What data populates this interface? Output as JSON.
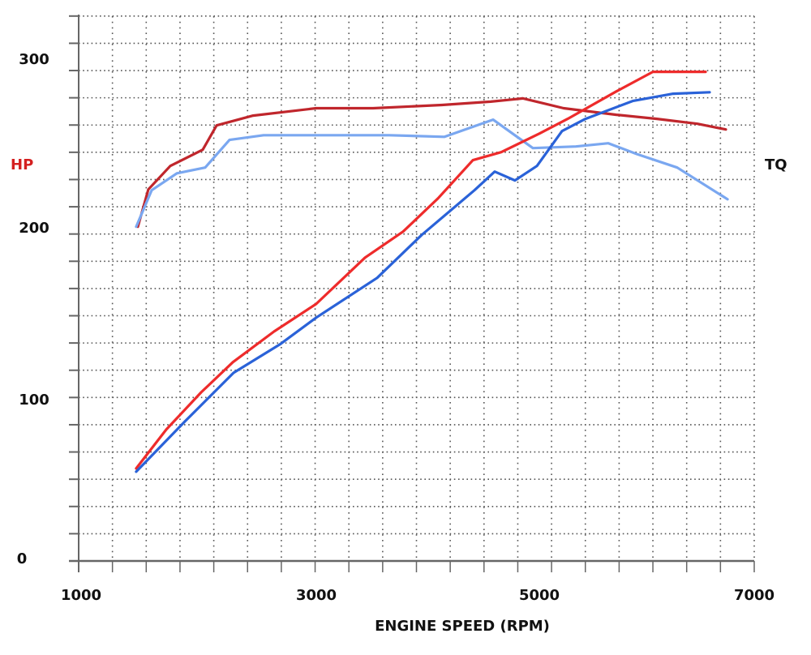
{
  "chart_data": {
    "type": "line",
    "title": "",
    "xlabel": "ENGINE SPEED (RPM)",
    "ylabel_left": "HP",
    "ylabel_right": "TQ",
    "xlim": [
      1000,
      7000
    ],
    "ylim": [
      0,
      333.3
    ],
    "x_ticks": [
      "1000",
      "3000",
      "5000",
      "7000"
    ],
    "y_ticks": [
      "0",
      "100",
      "200",
      "300"
    ],
    "x_grid_step": 300,
    "y_grid_step": 16.67,
    "grid": true,
    "grid_style": "dotted",
    "colors": {
      "hp_label": "#d42020",
      "axis": "#666666"
    },
    "series": [
      {
        "color": "#c0262c",
        "points": [
          [
            1526,
            204.5
          ],
          [
            1619,
            227.3
          ],
          [
            1814,
            241.7
          ],
          [
            2102,
            251.6
          ],
          [
            2225,
            266.5
          ],
          [
            2549,
            272.5
          ],
          [
            3110,
            277
          ],
          [
            3615,
            277
          ],
          [
            4227,
            279
          ],
          [
            4659,
            281
          ],
          [
            4947,
            283
          ],
          [
            5307,
            277
          ],
          [
            5776,
            273
          ],
          [
            6136,
            270.5
          ],
          [
            6496,
            267.5
          ],
          [
            6748,
            264
          ]
        ]
      },
      {
        "color": "#7aa7f0",
        "points": [
          [
            1511,
            204.5
          ],
          [
            1648,
            226.8
          ],
          [
            1872,
            237.2
          ],
          [
            2124,
            240.7
          ],
          [
            2340,
            257.6
          ],
          [
            2642,
            260.5
          ],
          [
            3759,
            260.5
          ],
          [
            4249,
            259.5
          ],
          [
            4681,
            270
          ],
          [
            5034,
            252.6
          ],
          [
            5416,
            253.6
          ],
          [
            5704,
            255.6
          ],
          [
            5956,
            249
          ],
          [
            6316,
            240.7
          ],
          [
            6763,
            221.3
          ]
        ]
      },
      {
        "color": "#ee2b2b",
        "points": [
          [
            1511,
            56.6
          ],
          [
            1778,
            80.4
          ],
          [
            2088,
            103.2
          ],
          [
            2369,
            121.6
          ],
          [
            2736,
            140.4
          ],
          [
            3110,
            157.3
          ],
          [
            3543,
            185.6
          ],
          [
            3881,
            201.5
          ],
          [
            4191,
            221.8
          ],
          [
            4501,
            245.2
          ],
          [
            4753,
            250.1
          ],
          [
            5091,
            261.5
          ],
          [
            5343,
            270.5
          ],
          [
            5776,
            287.3
          ],
          [
            6100,
            299.3
          ],
          [
            6568,
            299.3
          ]
        ]
      },
      {
        "color": "#2a62d8",
        "points": [
          [
            1511,
            54.6
          ],
          [
            1944,
            85.4
          ],
          [
            2376,
            115.1
          ],
          [
            2786,
            132.5
          ],
          [
            3110,
            148.9
          ],
          [
            3651,
            173.2
          ],
          [
            4047,
            199.5
          ],
          [
            4515,
            226.8
          ],
          [
            4695,
            238.2
          ],
          [
            4875,
            232.8
          ],
          [
            5070,
            241.7
          ],
          [
            5293,
            263
          ],
          [
            5502,
            270.5
          ],
          [
            5920,
            281.4
          ],
          [
            6280,
            285.9
          ],
          [
            6604,
            286.8
          ]
        ]
      }
    ]
  }
}
